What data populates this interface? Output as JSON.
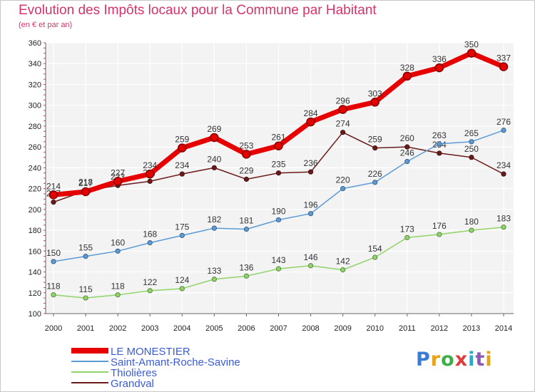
{
  "title": "Evolution des Impôts locaux pour la Commune par Habitant",
  "subtitle": "(en € et par an)",
  "logo": "Proxiti",
  "chart_data": {
    "type": "line",
    "title": "Evolution des Impôts locaux pour la Commune par Habitant",
    "subtitle": "(en € et par an)",
    "xlabel": "",
    "ylabel": "",
    "ylim": [
      100,
      360
    ],
    "yticks": [
      100,
      120,
      140,
      160,
      180,
      200,
      220,
      240,
      260,
      280,
      300,
      320,
      340,
      360
    ],
    "grid": true,
    "legend_position": "bottom-left",
    "categories": [
      "2000",
      "2001",
      "2002",
      "2003",
      "2004",
      "2005",
      "2006",
      "2007",
      "2008",
      "2009",
      "2010",
      "2011",
      "2012",
      "2013",
      "2014"
    ],
    "series": [
      {
        "name": "Grandval",
        "color": "#6b1a1a",
        "values": [
          207,
          218,
          223,
          227,
          234,
          240,
          229,
          235,
          236,
          274,
          259,
          260,
          254,
          250,
          234
        ]
      },
      {
        "name": "Thiolières",
        "color": "#8fd468",
        "values": [
          118,
          115,
          118,
          122,
          124,
          133,
          136,
          143,
          146,
          142,
          154,
          173,
          176,
          180,
          183
        ]
      },
      {
        "name": "Saint-Amant-Roche-Savine",
        "color": "#5b9bd5",
        "values": [
          150,
          155,
          160,
          168,
          175,
          182,
          181,
          190,
          196,
          220,
          226,
          246,
          263,
          265,
          276
        ]
      },
      {
        "name": "LE MONESTIER",
        "color": "#e60000",
        "values": [
          214,
          217,
          227,
          234,
          259,
          269,
          253,
          261,
          284,
          296,
          303,
          328,
          336,
          350,
          337
        ]
      }
    ]
  }
}
